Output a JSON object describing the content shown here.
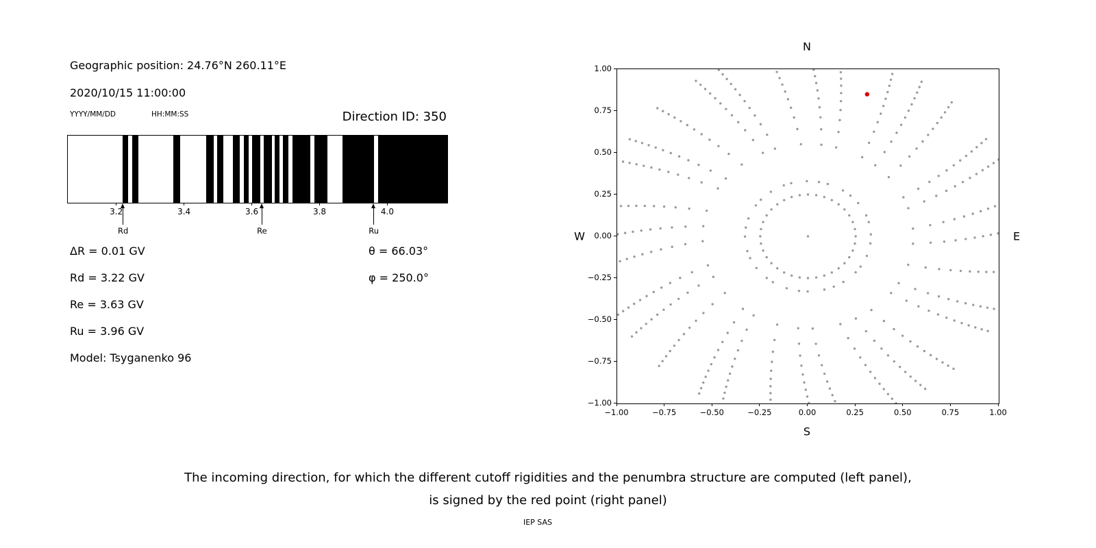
{
  "left_panel": {
    "geographic_position": "Geographic position: 24.76°N 260.11°E",
    "datetime": "2020/10/15 11:00:00",
    "date_format": "YYYY/MM/DD",
    "time_format": "HH:MM:SS",
    "direction_id": "Direction ID: 350",
    "info_lines": [
      "ΔR = 0.01 GV",
      "Rd = 3.22 GV",
      "Re = 3.63 GV",
      "Ru = 3.96 GV",
      "Model: Tsyganenko 96"
    ],
    "theta": "θ = 66.03°",
    "phi": "φ = 250.0°"
  },
  "chart_data": [
    {
      "type": "bar",
      "name": "penumbra-structure",
      "description": "Penumbra structure of cutoff rigidities: black bands = forbidden rigidity intervals (GV), white = allowed",
      "xlim": [
        3.055,
        4.175
      ],
      "xticks": [
        3.2,
        3.4,
        3.6,
        3.8,
        4.0
      ],
      "xtick_labels": [
        "3.2",
        "3.4",
        "3.6",
        "3.8",
        "4.0"
      ],
      "forbidden_bands_gv": [
        [
          3.216,
          3.232
        ],
        [
          3.246,
          3.263
        ],
        [
          3.366,
          3.386
        ],
        [
          3.463,
          3.485
        ],
        [
          3.495,
          3.513
        ],
        [
          3.543,
          3.562
        ],
        [
          3.574,
          3.588
        ],
        [
          3.598,
          3.624
        ],
        [
          3.634,
          3.657
        ],
        [
          3.665,
          3.679
        ],
        [
          3.689,
          3.705
        ],
        [
          3.719,
          3.77
        ],
        [
          3.782,
          3.822
        ],
        [
          3.865,
          3.958
        ],
        [
          3.97,
          4.175
        ]
      ],
      "markers": [
        {
          "label": "Rd",
          "value": 3.22
        },
        {
          "label": "Re",
          "value": 3.63
        },
        {
          "label": "Ru",
          "value": 3.96
        }
      ],
      "delta_r_gv": 0.01,
      "rd_gv": 3.22,
      "re_gv": 3.63,
      "ru_gv": 3.96,
      "model": "Tsyganenko 96"
    },
    {
      "type": "scatter",
      "name": "incoming-direction-map",
      "description": "Sky map of incoming directions (gray dots: grid of computed directions arranged as inner ring plus radial spokes; red dot: selected direction ID 350)",
      "xlim": [
        -1.0,
        1.0
      ],
      "ylim": [
        -1.0,
        1.0
      ],
      "xticks": [
        -1.0,
        -0.75,
        -0.5,
        -0.25,
        0.0,
        0.25,
        0.5,
        0.75,
        1.0
      ],
      "xtick_labels": [
        "−1.00",
        "−0.75",
        "−0.50",
        "−0.25",
        "0.00",
        "0.25",
        "0.50",
        "0.75",
        "1.00"
      ],
      "yticks": [
        1.0,
        0.75,
        0.5,
        0.25,
        0.0,
        -0.25,
        -0.5,
        -0.75,
        -1.0
      ],
      "ytick_labels": [
        "1.00",
        "0.75",
        "0.50",
        "0.25",
        "0.00",
        "−0.25",
        "−0.50",
        "−0.75",
        "−1.00"
      ],
      "compass": {
        "top": "N",
        "bottom": "S",
        "left": "W",
        "right": "E"
      },
      "red_point": {
        "x": 0.31,
        "y": 0.85,
        "color": "#dd0000"
      },
      "gray_color": "#9a9a9a",
      "gray_pattern": {
        "center_point": true,
        "inner_ring": {
          "radius": 0.25,
          "count": 36
        },
        "spokes": {
          "count": 32,
          "r_start": 0.33,
          "r_end": 1.1,
          "points_per_spoke": 13,
          "curvature": 0.22,
          "angle_offset_deg": 2
        }
      }
    }
  ],
  "caption": {
    "line1": "The incoming direction, for which the different cutoff rigidities and the penumbra structure are computed (left panel),",
    "line2": "is signed by the red point (right panel)",
    "credit": "IEP SAS"
  }
}
